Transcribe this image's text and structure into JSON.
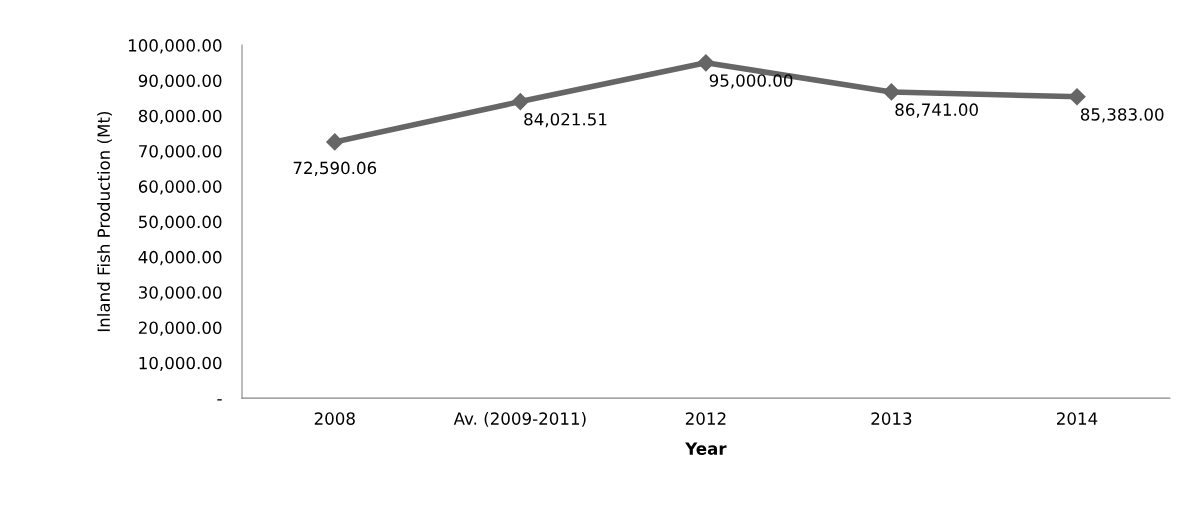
{
  "chart_data": {
    "type": "line",
    "xlabel": "Year",
    "ylabel": "Inland Fish Production (Mt)",
    "categories": [
      "2008",
      "Av. (2009-2011)",
      "2012",
      "2013",
      "2014"
    ],
    "series": [
      {
        "color": "#666666",
        "values": [
          72590.06,
          84021.51,
          95000.0,
          86741.0,
          85383.0
        ],
        "value_labels": [
          "72,590.06",
          "84,021.51",
          "95,000.00",
          "86,741.00",
          "85,383.00"
        ]
      }
    ],
    "ylim": [
      0,
      100000
    ],
    "yticks": [
      {
        "value": 0,
        "label": "-"
      },
      {
        "value": 10000,
        "label": "10,000.00"
      },
      {
        "value": 20000,
        "label": "20,000.00"
      },
      {
        "value": 30000,
        "label": "30,000.00"
      },
      {
        "value": 40000,
        "label": "40,000.00"
      },
      {
        "value": 50000,
        "label": "50,000.00"
      },
      {
        "value": 60000,
        "label": "60,000.00"
      },
      {
        "value": 70000,
        "label": "70,000.00"
      },
      {
        "value": 80000,
        "label": "80,000.00"
      },
      {
        "value": 90000,
        "label": "90,000.00"
      },
      {
        "value": 100000,
        "label": "100,000.00"
      }
    ],
    "marker": "diamond",
    "line_style": "solid",
    "grid": false,
    "legend": false
  }
}
